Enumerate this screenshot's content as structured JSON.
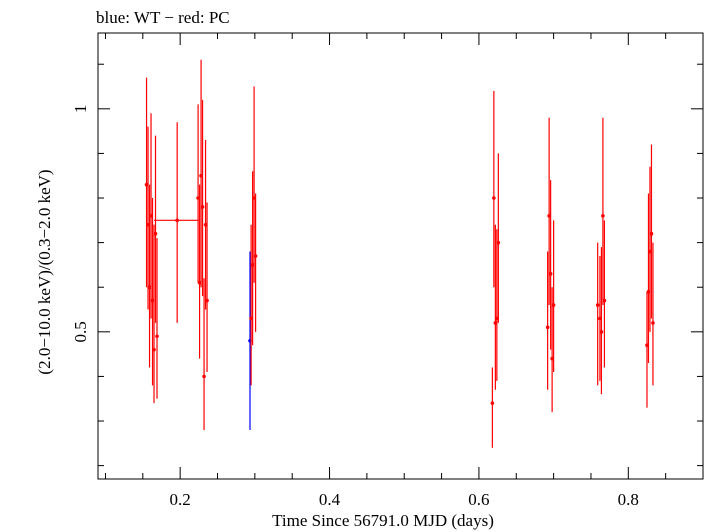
{
  "chart_data": {
    "type": "scatter",
    "title": "blue: WT − red: PC",
    "xlabel": "Time Since 56791.0 MJD (days)",
    "ylabel": "(2.0−10.0 keV)/(0.3−2.0 keV)",
    "xlim": [
      0.09,
      0.9
    ],
    "ylim": [
      0.17,
      1.17
    ],
    "x_ticks": [
      {
        "value": 0.2,
        "label": "0.2"
      },
      {
        "value": 0.4,
        "label": "0.4"
      },
      {
        "value": 0.6,
        "label": "0.6"
      },
      {
        "value": 0.8,
        "label": "0.8"
      }
    ],
    "y_ticks": [
      {
        "value": 0.5,
        "label": "0.5"
      },
      {
        "value": 1.0,
        "label": "1"
      }
    ],
    "x_minor_step": 0.05,
    "y_minor_step": 0.1,
    "grid": false,
    "series": [
      {
        "name": "WT",
        "color": "#0000ff",
        "points": [
          {
            "x": 0.2935,
            "y": 0.48,
            "ylo": 0.28,
            "yhi": 0.68
          }
        ]
      },
      {
        "name": "PC",
        "color": "#ff0000",
        "points": [
          {
            "x": 0.155,
            "y": 0.83,
            "ylo": 0.6,
            "yhi": 1.07
          },
          {
            "x": 0.157,
            "y": 0.74,
            "ylo": 0.55,
            "yhi": 0.96
          },
          {
            "x": 0.159,
            "y": 0.6,
            "ylo": 0.42,
            "yhi": 0.83
          },
          {
            "x": 0.161,
            "y": 0.76,
            "ylo": 0.53,
            "yhi": 0.99
          },
          {
            "x": 0.163,
            "y": 0.57,
            "ylo": 0.38,
            "yhi": 0.8
          },
          {
            "x": 0.165,
            "y": 0.46,
            "ylo": 0.34,
            "yhi": 0.74
          },
          {
            "x": 0.167,
            "y": 0.72,
            "ylo": 0.52,
            "yhi": 0.94
          },
          {
            "x": 0.169,
            "y": 0.49,
            "ylo": 0.35,
            "yhi": 0.71
          },
          {
            "x": 0.196,
            "xlo": 0.165,
            "xhi": 0.225,
            "y": 0.75,
            "ylo": 0.52,
            "yhi": 0.97
          },
          {
            "x": 0.224,
            "y": 0.8,
            "ylo": 0.61,
            "yhi": 1.01
          },
          {
            "x": 0.226,
            "y": 0.61,
            "ylo": 0.44,
            "yhi": 0.83
          },
          {
            "x": 0.228,
            "y": 0.85,
            "ylo": 0.6,
            "yhi": 1.11
          },
          {
            "x": 0.23,
            "y": 0.78,
            "ylo": 0.58,
            "yhi": 1.02
          },
          {
            "x": 0.232,
            "y": 0.4,
            "ylo": 0.28,
            "yhi": 0.62
          },
          {
            "x": 0.234,
            "y": 0.74,
            "ylo": 0.55,
            "yhi": 0.93
          },
          {
            "x": 0.236,
            "y": 0.57,
            "ylo": 0.41,
            "yhi": 0.79
          },
          {
            "x": 0.295,
            "y": 0.53,
            "ylo": 0.38,
            "yhi": 0.74
          },
          {
            "x": 0.297,
            "y": 0.65,
            "ylo": 0.47,
            "yhi": 0.86
          },
          {
            "x": 0.299,
            "y": 0.8,
            "ylo": 0.61,
            "yhi": 1.05
          },
          {
            "x": 0.301,
            "y": 0.67,
            "ylo": 0.5,
            "yhi": 0.81
          },
          {
            "x": 0.618,
            "y": 0.34,
            "ylo": 0.24,
            "yhi": 0.42
          },
          {
            "x": 0.62,
            "y": 0.8,
            "ylo": 0.6,
            "yhi": 1.04
          },
          {
            "x": 0.622,
            "y": 0.52,
            "ylo": 0.37,
            "yhi": 0.74
          },
          {
            "x": 0.624,
            "y": 0.53,
            "ylo": 0.39,
            "yhi": 0.73
          },
          {
            "x": 0.626,
            "y": 0.7,
            "ylo": 0.52,
            "yhi": 0.9
          },
          {
            "x": 0.692,
            "y": 0.51,
            "ylo": 0.37,
            "yhi": 0.68
          },
          {
            "x": 0.694,
            "y": 0.76,
            "ylo": 0.56,
            "yhi": 0.98
          },
          {
            "x": 0.696,
            "y": 0.63,
            "ylo": 0.46,
            "yhi": 0.84
          },
          {
            "x": 0.698,
            "y": 0.44,
            "ylo": 0.32,
            "yhi": 0.6
          },
          {
            "x": 0.7,
            "y": 0.56,
            "ylo": 0.41,
            "yhi": 0.75
          },
          {
            "x": 0.759,
            "y": 0.56,
            "ylo": 0.38,
            "yhi": 0.7
          },
          {
            "x": 0.762,
            "y": 0.53,
            "ylo": 0.39,
            "yhi": 0.67
          },
          {
            "x": 0.764,
            "y": 0.5,
            "ylo": 0.36,
            "yhi": 0.69
          },
          {
            "x": 0.766,
            "y": 0.76,
            "ylo": 0.56,
            "yhi": 0.98
          },
          {
            "x": 0.768,
            "y": 0.57,
            "ylo": 0.42,
            "yhi": 0.75
          },
          {
            "x": 0.825,
            "y": 0.47,
            "ylo": 0.33,
            "yhi": 0.59
          },
          {
            "x": 0.827,
            "y": 0.59,
            "ylo": 0.43,
            "yhi": 0.81
          },
          {
            "x": 0.829,
            "y": 0.68,
            "ylo": 0.5,
            "yhi": 0.87
          },
          {
            "x": 0.831,
            "y": 0.72,
            "ylo": 0.53,
            "yhi": 0.92
          },
          {
            "x": 0.833,
            "y": 0.52,
            "ylo": 0.38,
            "yhi": 0.7
          }
        ]
      }
    ]
  }
}
